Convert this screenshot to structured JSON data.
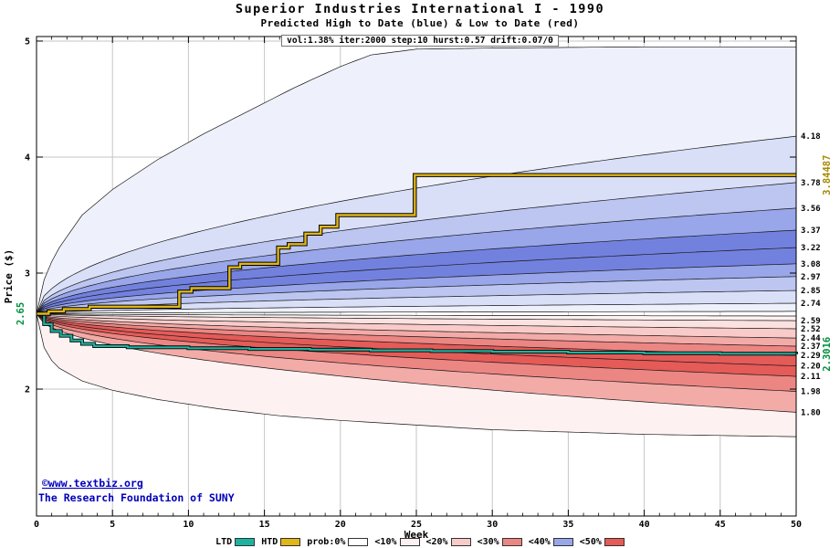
{
  "header": {
    "title": "Superior Industries International I - 1990",
    "subtitle": "Predicted High to Date (blue) &  Low to Date (red)",
    "params": "vol:1.38% iter:2000 step:10 hurst:0.57 drift:0.07/0"
  },
  "watermark": {
    "line1": "©www.textbiz.org",
    "line2": "The Research Foundation of SUNY",
    "color": "#0000bb"
  },
  "legend": {
    "items": [
      {
        "label": "LTD",
        "swatch": "#1db3a0"
      },
      {
        "label": "HTD",
        "swatch": "#e0b619"
      },
      {
        "label": "prob:0%",
        "swatch": "#ffffff"
      },
      {
        "label": "<10%",
        "swatch": "#fdf2f1"
      },
      {
        "label": "<20%",
        "swatch": "#f8cbc9"
      },
      {
        "label": "<30%",
        "swatch": "#ec8683"
      },
      {
        "label": "<40%",
        "swatch": "#99a6e9"
      },
      {
        "label": "<50%",
        "swatch": "#e45b58"
      }
    ]
  },
  "chart_data": {
    "type": "area",
    "title": "Superior Industries International I - 1990",
    "xlabel": "Week",
    "ylabel": "Price ($)",
    "xlim": [
      0,
      50
    ],
    "ylim": [
      0.906,
      5.039
    ],
    "xticks": [
      0,
      5,
      10,
      15,
      20,
      25,
      30,
      35,
      40,
      45,
      50
    ],
    "yticks": [
      2,
      3,
      4,
      5
    ],
    "grid": true,
    "legend_position": "bottom",
    "style": {
      "grid": "#c6c6c6",
      "boundary": "#141414",
      "frame": "#000000"
    },
    "fans": {
      "start": 2.65,
      "exponent": 0.5,
      "high": {
        "boundaries_end": [
          2.67,
          2.74,
          2.85,
          2.97,
          3.08,
          3.22,
          3.37,
          3.56,
          3.78,
          4.18
        ],
        "band_colors": [
          "#eef1fb",
          "#d9dff7",
          "#bcc6f1",
          "#99a6e9",
          "#7381de",
          "#7381de",
          "#99a6e9",
          "#bcc6f1",
          "#d9dff7",
          "#eef1fb"
        ],
        "envelope": [
          [
            0,
            2.65
          ],
          [
            0.6,
            3.0
          ],
          [
            1.5,
            3.22
          ],
          [
            3,
            3.5
          ],
          [
            5,
            3.72
          ],
          [
            8,
            3.98
          ],
          [
            11,
            4.2
          ],
          [
            14,
            4.4
          ],
          [
            17,
            4.6
          ],
          [
            20,
            4.78
          ],
          [
            22,
            4.88
          ],
          [
            25,
            4.93
          ],
          [
            30,
            4.94
          ],
          [
            40,
            4.95
          ],
          [
            50,
            4.95
          ]
        ]
      },
      "low": {
        "boundaries_end": [
          2.63,
          2.59,
          2.52,
          2.44,
          2.37,
          2.29,
          2.2,
          2.11,
          1.98,
          1.8
        ],
        "band_colors": [
          "#fdf2f1",
          "#fbe1e0",
          "#f8cbc9",
          "#f3aba8",
          "#ec8683",
          "#e45b58",
          "#e45b58",
          "#ec8683",
          "#f3aba8",
          "#fdf2f1"
        ],
        "envelope": [
          [
            0,
            2.65
          ],
          [
            0.6,
            2.3
          ],
          [
            1.5,
            2.18
          ],
          [
            3,
            2.07
          ],
          [
            5,
            1.99
          ],
          [
            8,
            1.91
          ],
          [
            12,
            1.83
          ],
          [
            16,
            1.77
          ],
          [
            20,
            1.73
          ],
          [
            25,
            1.69
          ],
          [
            30,
            1.65
          ],
          [
            35,
            1.63
          ],
          [
            40,
            1.61
          ],
          [
            45,
            1.6
          ],
          [
            50,
            1.59
          ]
        ]
      }
    },
    "right_axis_labels": [
      "4.18",
      "3.78",
      "3.56",
      "3.37",
      "3.22",
      "3.08",
      "2.97",
      "2.85",
      "2.74",
      "2.59",
      "2.52",
      "2.44",
      "2.37",
      "2.29",
      "2.20",
      "2.11",
      "1.98",
      "1.80"
    ],
    "htd": {
      "name": "HTD",
      "color": "#e0b619",
      "end_label": {
        "text": "3.84487",
        "value": 3.84487,
        "color": "#a88a00"
      },
      "steps": [
        [
          0,
          2.65
        ],
        [
          0.8,
          2.67
        ],
        [
          1.8,
          2.69
        ],
        [
          3.5,
          2.71
        ],
        [
          9.4,
          2.84
        ],
        [
          10.2,
          2.87
        ],
        [
          12.7,
          3.05
        ],
        [
          13.4,
          3.08
        ],
        [
          15.9,
          3.22
        ],
        [
          16.6,
          3.25
        ],
        [
          17.7,
          3.34
        ],
        [
          18.7,
          3.4
        ],
        [
          19.8,
          3.5
        ],
        [
          24.9,
          3.84487
        ],
        [
          50,
          3.84487
        ]
      ]
    },
    "ltd": {
      "name": "LTD",
      "color": "#1db3a0",
      "end_label": {
        "text": "2.3016",
        "value": 2.3016,
        "color": "#008f3d"
      },
      "steps": [
        [
          0,
          2.65
        ],
        [
          0.5,
          2.56
        ],
        [
          1,
          2.5
        ],
        [
          1.6,
          2.46
        ],
        [
          2.3,
          2.42
        ],
        [
          3,
          2.39
        ],
        [
          3.8,
          2.37
        ],
        [
          6,
          2.36
        ],
        [
          10,
          2.352
        ],
        [
          14,
          2.346
        ],
        [
          18,
          2.34
        ],
        [
          22,
          2.334
        ],
        [
          26,
          2.328
        ],
        [
          30,
          2.322
        ],
        [
          35,
          2.315
        ],
        [
          40,
          2.31
        ],
        [
          45,
          2.305
        ],
        [
          50,
          2.3016
        ]
      ]
    },
    "start_label": {
      "text": "2.65",
      "value": 2.65,
      "color": "#008f3d"
    }
  }
}
